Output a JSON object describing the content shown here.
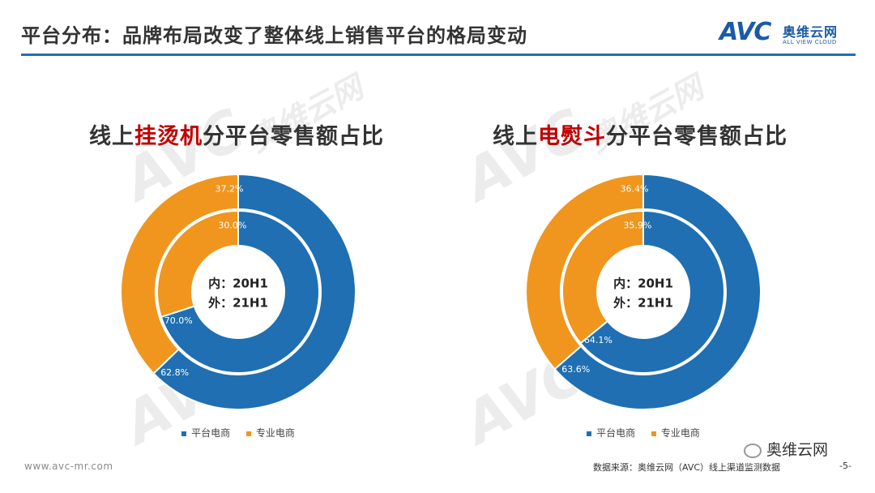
{
  "header": {
    "title": "平台分布：品牌布局改变了整体线上销售平台的格局变动",
    "logo_mark": "AVC",
    "logo_cn": "奥维云网",
    "logo_en": "ALL VIEW CLOUD",
    "accent_color": "#1f6fb2"
  },
  "colors": {
    "platform": "#1f6fb2",
    "professional": "#f0961e"
  },
  "chart_data": [
    {
      "type": "donut",
      "title_prefix": "线上",
      "title_highlight": "挂烫机",
      "title_suffix": "分平台零售额占比",
      "center_lines": [
        "内：20H1",
        "外：21H1"
      ],
      "rings": [
        {
          "name": "20H1",
          "position": "inner",
          "values": [
            70.0,
            30.0
          ],
          "labels": [
            "70.0%",
            "30.0%"
          ]
        },
        {
          "name": "21H1",
          "position": "outer",
          "values": [
            62.8,
            37.2
          ],
          "labels": [
            "62.8%",
            "37.2%"
          ]
        }
      ],
      "categories": [
        "平台电商",
        "专业电商"
      ],
      "legend": [
        "平台电商",
        "专业电商"
      ]
    },
    {
      "type": "donut",
      "title_prefix": "线上",
      "title_highlight": "电熨斗",
      "title_suffix": "分平台零售额占比",
      "center_lines": [
        "内：20H1",
        "外：21H1"
      ],
      "rings": [
        {
          "name": "20H1",
          "position": "inner",
          "values": [
            64.1,
            35.9
          ],
          "labels": [
            "64.1%",
            "35.9%"
          ]
        },
        {
          "name": "21H1",
          "position": "outer",
          "values": [
            63.6,
            36.4
          ],
          "labels": [
            "63.6%",
            "36.4%"
          ]
        }
      ],
      "categories": [
        "平台电商",
        "专业电商"
      ],
      "legend": [
        "平台电商",
        "专业电商"
      ]
    }
  ],
  "footer": {
    "url": "www.avc-mr.com",
    "source": "数据来源：奥维云网（AVC）线上渠道监测数据",
    "page": "-5-",
    "wechat": "奥维云网"
  }
}
